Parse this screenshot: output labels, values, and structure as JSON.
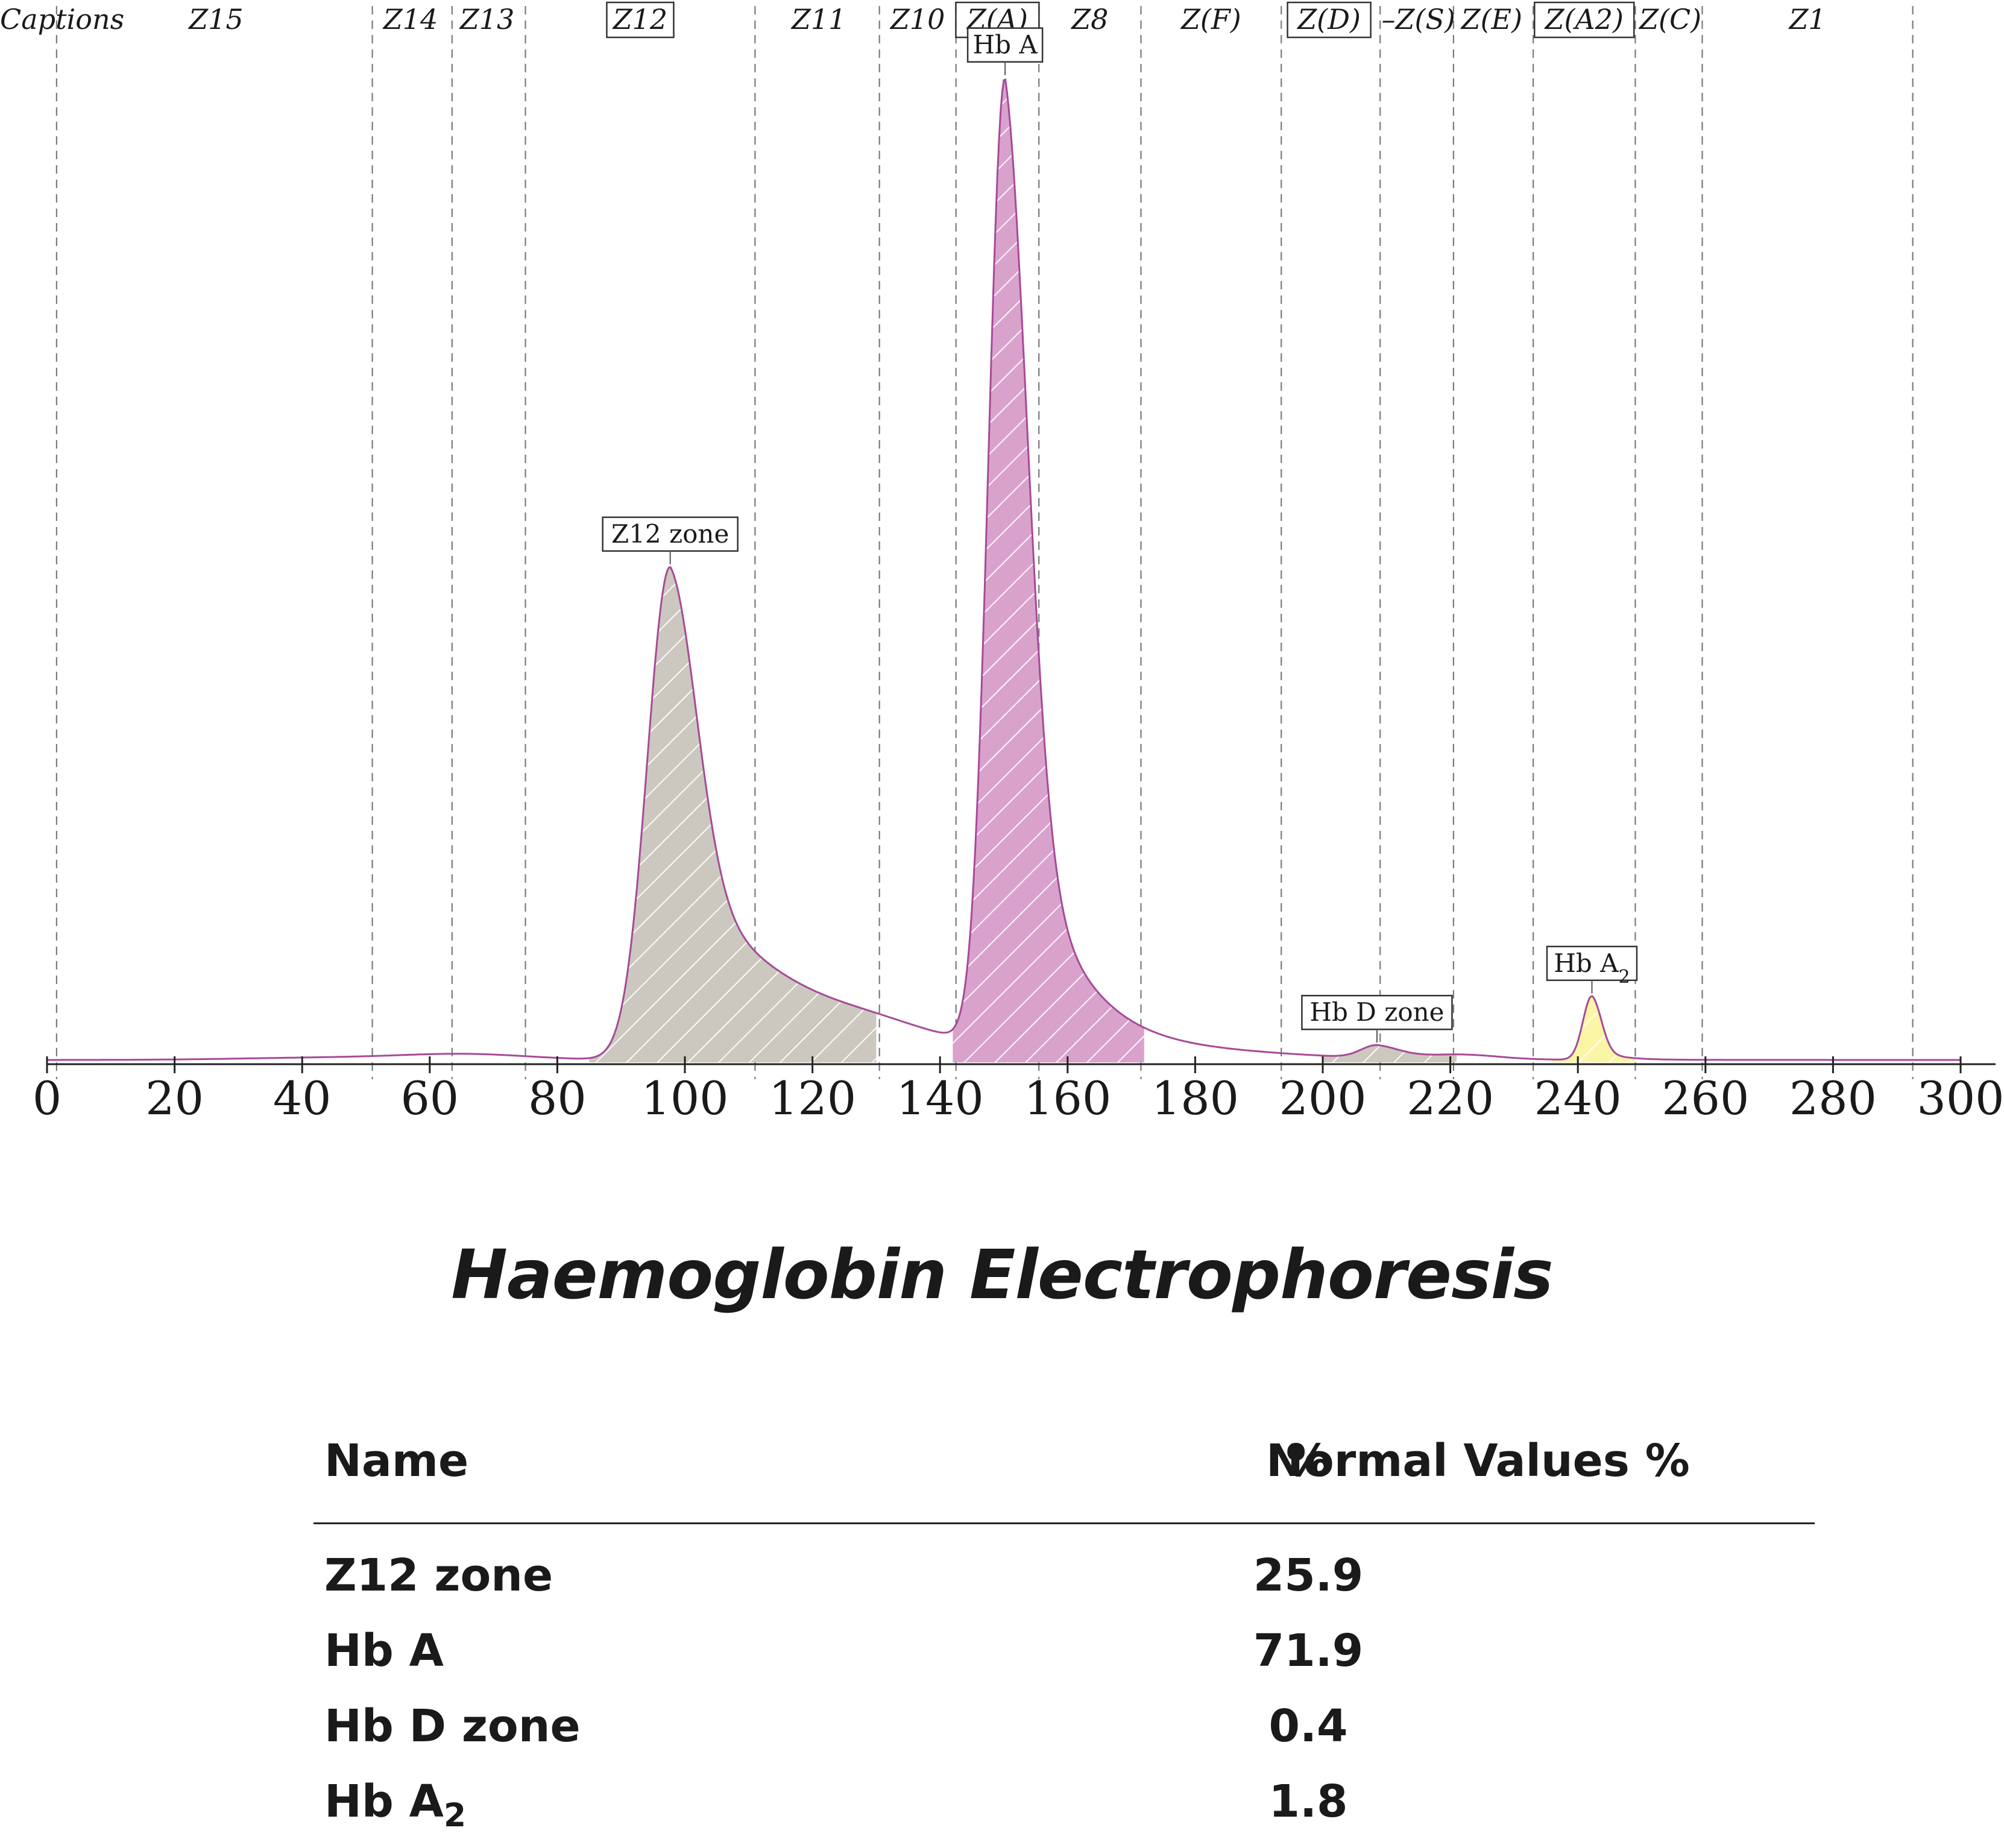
{
  "chart_data": {
    "type": "area",
    "title": "Haemoglobin Electrophoresis",
    "xlim": [
      0,
      300
    ],
    "x_ticks": [
      0,
      20,
      40,
      60,
      80,
      100,
      120,
      140,
      160,
      180,
      200,
      220,
      240,
      260,
      280,
      300
    ],
    "grid": "vertical zone boundaries",
    "zone_boundaries": [
      1.5,
      51,
      63.5,
      75,
      111,
      130.5,
      142.5,
      155.5,
      171.5,
      193.5,
      209,
      220.5,
      233,
      249,
      259.5,
      292.5
    ],
    "captions": [
      {
        "label": "Captions",
        "x": 1,
        "boxed": false
      },
      {
        "label": "Z15",
        "x": 26.5,
        "boxed": false
      },
      {
        "label": "Z14",
        "x": 57,
        "boxed": false
      },
      {
        "label": "Z13",
        "x": 69,
        "boxed": false
      },
      {
        "label": "Z12",
        "x": 93,
        "boxed": true
      },
      {
        "label": "Z11",
        "x": 121,
        "boxed": false
      },
      {
        "label": "Z10",
        "x": 136.5,
        "boxed": false
      },
      {
        "label": "Z(A)",
        "x": 149,
        "boxed": true
      },
      {
        "label": "Z8",
        "x": 163.5,
        "boxed": false
      },
      {
        "label": "Z(F)",
        "x": 182.5,
        "boxed": false
      },
      {
        "label": "Z(D)",
        "x": 201,
        "boxed": true
      },
      {
        "label": "–Z(S)",
        "x": 215,
        "boxed": false
      },
      {
        "label": "Z(E)",
        "x": 226.5,
        "boxed": false
      },
      {
        "label": "Z(A2)",
        "x": 241,
        "boxed": true
      },
      {
        "label": "Z(C)",
        "x": 254.5,
        "boxed": false
      },
      {
        "label": "Z1",
        "x": 276,
        "boxed": false
      }
    ],
    "peaks": [
      {
        "name": "Z12 zone",
        "percent": 25.9,
        "center": 97.7,
        "height": 51,
        "rise": 3.6,
        "fall_fast": 4.2,
        "fall_slow": 18,
        "slow_weight": 0.42,
        "color": "#ccc8bf",
        "range": [
          85,
          130
        ]
      },
      {
        "name": "Hb A",
        "percent": 71.9,
        "center": 150.2,
        "height": 100,
        "rise": 2.6,
        "fall_fast": 3.6,
        "fall_slow": 7.5,
        "slow_weight": 0.35,
        "color": "#d9a2cc",
        "range": [
          142,
          172
        ]
      },
      {
        "name": "Hb D zone",
        "percent": 0.4,
        "center": 208.5,
        "height": 1.3,
        "rise": 2.5,
        "fall_fast": 3.5,
        "fall_slow": 6,
        "slow_weight": 0.3,
        "color": "#ccc8bf",
        "range": [
          200,
          221
        ]
      },
      {
        "name": "Hb A2",
        "percent": 1.8,
        "center": 242.2,
        "height": 6.6,
        "rise": 1.4,
        "fall_fast": 1.5,
        "fall_slow": 3,
        "slow_weight": 0.2,
        "color": "#fbf6a6",
        "range": [
          236,
          249
        ]
      }
    ],
    "peak_labels": [
      "Z12 zone",
      "Hb A",
      "Hb D zone",
      "Hb A2"
    ],
    "line_color": "#a64a97"
  },
  "table": {
    "headers": {
      "name": "Name",
      "percent": "%",
      "normal": "Normal Values %"
    },
    "rows": [
      {
        "name": "Z12 zone",
        "percent": "25.9",
        "normal": ""
      },
      {
        "name": "Hb A",
        "percent": "71.9",
        "normal": ""
      },
      {
        "name": "Hb D zone",
        "percent": "0.4",
        "normal": ""
      },
      {
        "name": "Hb A2",
        "percent": "1.8",
        "normal": ""
      }
    ]
  }
}
